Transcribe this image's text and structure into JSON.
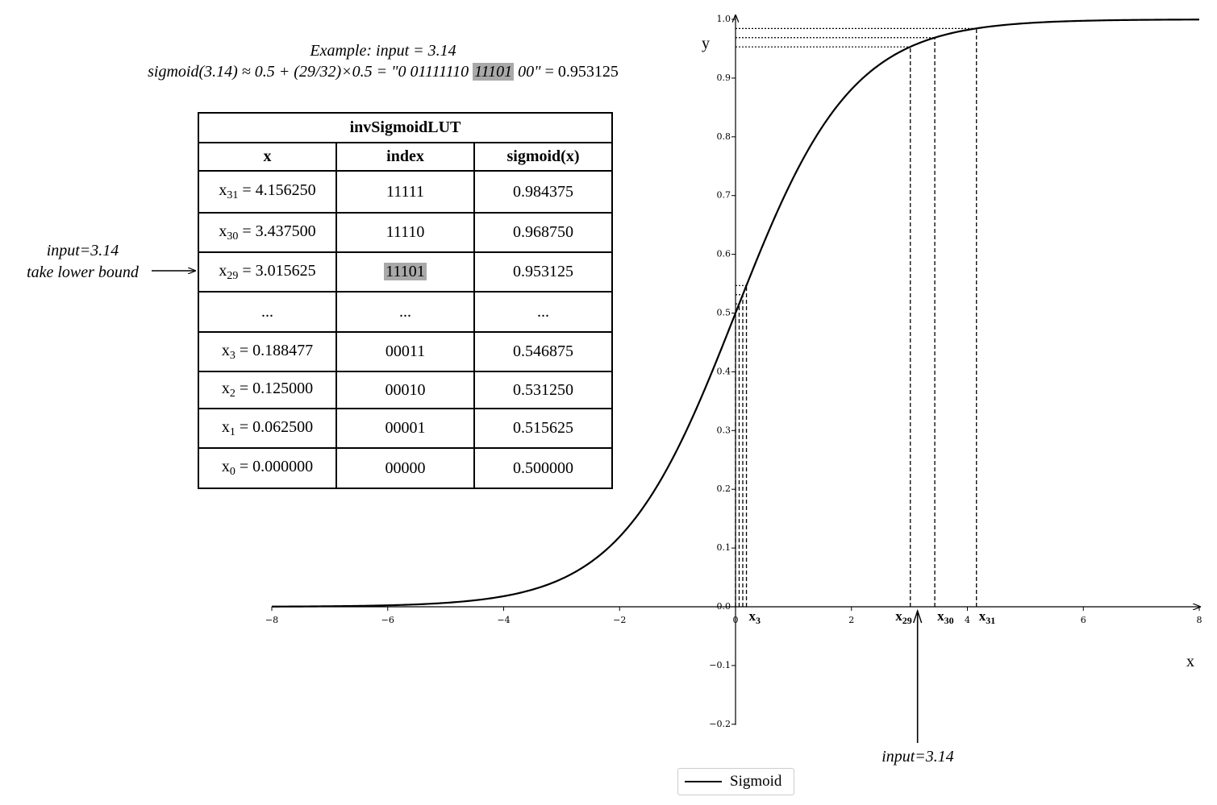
{
  "example": {
    "title": "Example: input = 3.14",
    "formula_prefix": "sigmoid(3.14) ≈ 0.5 + (29/32)×0.5 = \"0 01111110 ",
    "formula_index_bits": "11101",
    "formula_suffix": " 00\"",
    "formula_result": " = 0.953125"
  },
  "table": {
    "title": "invSigmoidLUT",
    "headers": [
      "x",
      "index",
      "sigmoid(x)"
    ],
    "rows": [
      {
        "x_sub": "31",
        "x_value": "= 4.156250",
        "index": "11111",
        "sigmoid": "0.984375"
      },
      {
        "x_sub": "30",
        "x_value": "= 3.437500",
        "index": "11110",
        "sigmoid": "0.968750"
      },
      {
        "x_sub": "29",
        "x_value": "= 3.015625",
        "index": "11101",
        "sigmoid": "0.953125",
        "highlight": true
      },
      {
        "ellipsis": "..."
      },
      {
        "x_sub": "3",
        "x_value": "= 0.188477",
        "index": "00011",
        "sigmoid": "0.546875"
      },
      {
        "x_sub": "2",
        "x_value": "= 0.125000",
        "index": "00010",
        "sigmoid": "0.531250"
      },
      {
        "x_sub": "1",
        "x_value": "= 0.062500",
        "index": "00001",
        "sigmoid": "0.515625"
      },
      {
        "x_sub": "0",
        "x_value": "= 0.000000",
        "index": "00000",
        "sigmoid": "0.500000"
      }
    ]
  },
  "annotations": {
    "table_note_line1": "input=3.14",
    "table_note_line2": "take lower bound",
    "axis_note": "input=3.14"
  },
  "chart_data": {
    "type": "line",
    "function": "sigmoid",
    "title": "",
    "xlabel": "x",
    "ylabel": "y",
    "xlim": [
      -8,
      8
    ],
    "ylim": [
      -0.2,
      1.0
    ],
    "x_ticks": [
      -8,
      -6,
      -4,
      -2,
      0,
      2,
      4,
      6,
      8
    ],
    "x_tick_labels": [
      "−8",
      "−6",
      "−4",
      "−2",
      "0",
      "2",
      "4",
      "6",
      "8"
    ],
    "y_ticks": [
      -0.2,
      -0.1,
      0.0,
      0.1,
      0.2,
      0.3,
      0.4,
      0.5,
      0.6,
      0.7,
      0.8,
      0.9,
      1.0
    ],
    "y_tick_labels": [
      "−0.2",
      "−0.1",
      "0.0",
      "0.1",
      "0.2",
      "0.3",
      "0.4",
      "0.5",
      "0.6",
      "0.7",
      "0.8",
      "0.9",
      "1.0"
    ],
    "grid": false,
    "legend": {
      "position": "bottom-center",
      "entries": [
        "Sigmoid"
      ]
    },
    "series": [
      {
        "name": "Sigmoid",
        "x_range": [
          -8,
          8
        ],
        "color": "#000000"
      }
    ],
    "lookup_points": [
      {
        "label": "x",
        "sub": "0",
        "x": 0.0,
        "y": 0.5,
        "show_label": false
      },
      {
        "label": "x",
        "sub": "1",
        "x": 0.0625,
        "y": 0.515625,
        "show_label": false
      },
      {
        "label": "x",
        "sub": "2",
        "x": 0.125,
        "y": 0.53125,
        "show_label": false
      },
      {
        "label": "x",
        "sub": "3",
        "x": 0.188477,
        "y": 0.546875,
        "show_label": true
      },
      {
        "label": "x",
        "sub": "29",
        "x": 3.015625,
        "y": 0.953125,
        "show_label": true
      },
      {
        "label": "x",
        "sub": "30",
        "x": 3.4375,
        "y": 0.96875,
        "show_label": true
      },
      {
        "label": "x",
        "sub": "31",
        "x": 4.15625,
        "y": 0.984375,
        "show_label": true
      }
    ],
    "input_marker": {
      "x": 3.14
    }
  }
}
